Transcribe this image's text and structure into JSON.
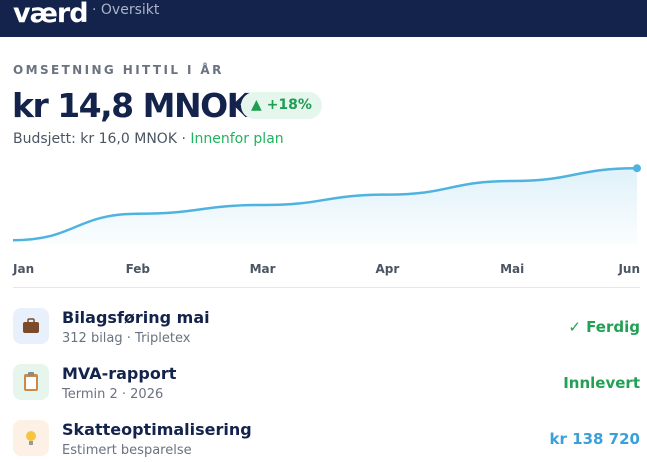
{
  "header": {
    "logo": "værd",
    "section": "· Oversikt"
  },
  "summary": {
    "label": "OMSETNING HITTIL I ÅR",
    "amount": "kr 14,8 MNOK",
    "badge": "▲ +18%",
    "budget": "Budsjett: kr 16,0 MNOK ·",
    "status": "Innenfor plan"
  },
  "chart_data": {
    "type": "line",
    "categories": [
      "Jan",
      "Feb",
      "Mar",
      "Apr",
      "Mai",
      "Jun"
    ],
    "values": [
      0.6,
      3.9,
      5.0,
      6.3,
      8.0,
      9.6
    ],
    "color": "#4fb3e0",
    "ylim": [
      0,
      10
    ]
  },
  "items": [
    {
      "title": "Bilagsføring mai",
      "subtitle": "312 bilag · Tripletex",
      "status": "✓ Ferdig"
    },
    {
      "title": "MVA-rapport",
      "subtitle": "Termin 2 · 2026",
      "status": "Innlevert"
    },
    {
      "title": "Skatteoptimalisering",
      "subtitle": "Estimert besparelse",
      "status": "kr 138 720"
    }
  ]
}
